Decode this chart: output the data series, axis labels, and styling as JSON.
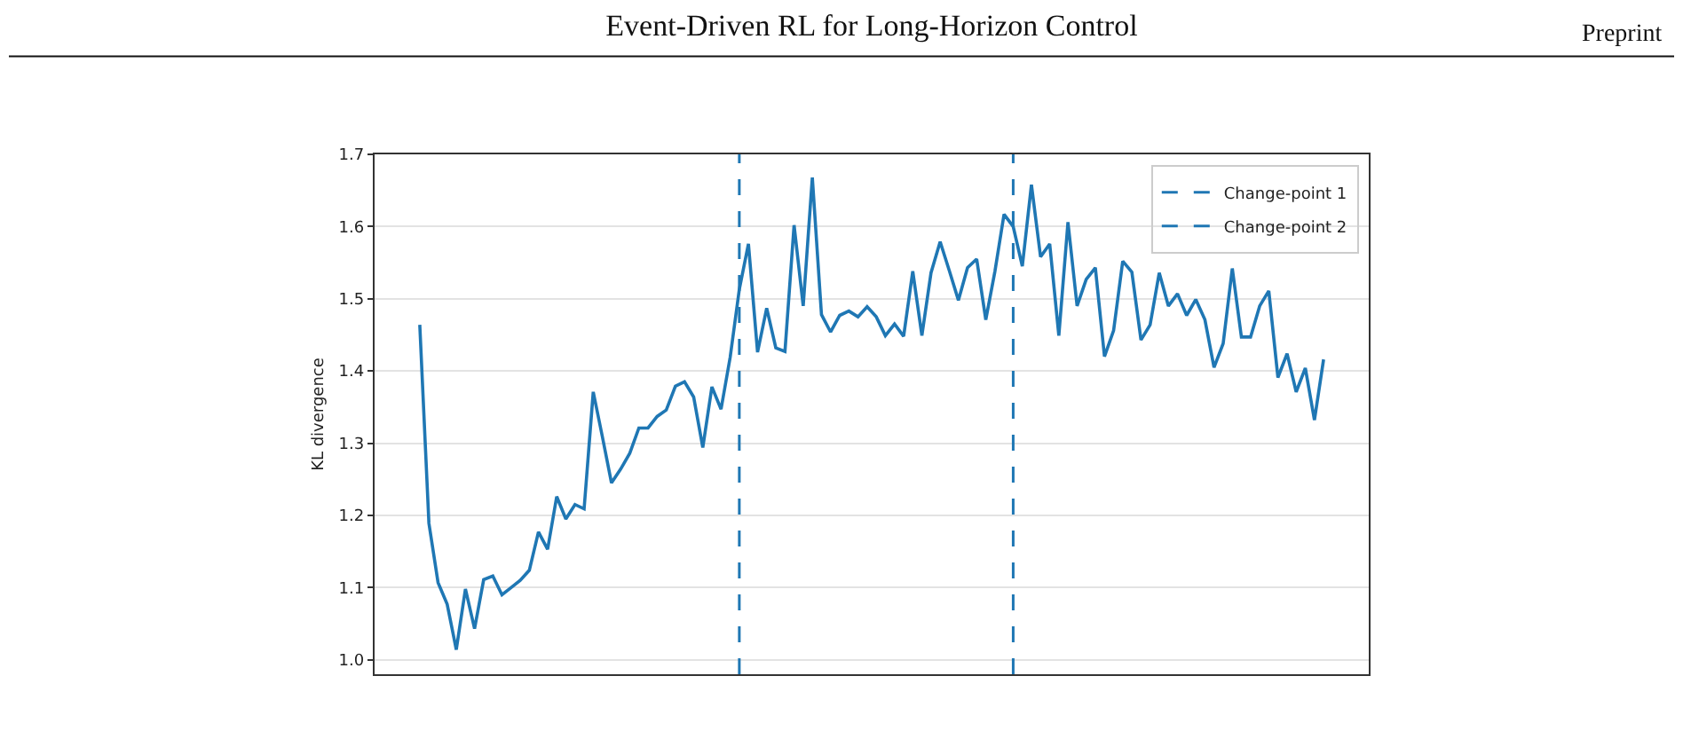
{
  "chart_data": {
    "type": "line",
    "title": "Event-Driven RL for Long-Horizon Control",
    "annotations": [
      "Preprint"
    ],
    "ylabel": "KL divergence",
    "categories": [
      null,
      null,
      null,
      null,
      null,
      null,
      null,
      null,
      null,
      null,
      null,
      null,
      null,
      null,
      null,
      null,
      null,
      null,
      null,
      null,
      null,
      null,
      null,
      null,
      null,
      null,
      null,
      null,
      null,
      null,
      null,
      null,
      null,
      null,
      null,
      null,
      null,
      null,
      null,
      null,
      null,
      null,
      null,
      null,
      null,
      null,
      null,
      null,
      null,
      null,
      null,
      null,
      null,
      null,
      null,
      null,
      null,
      null,
      null,
      null,
      null,
      null,
      null,
      null,
      null,
      null,
      null,
      null,
      null,
      null,
      null,
      null,
      null,
      null,
      null,
      null,
      null,
      null,
      null,
      null,
      null,
      null,
      null,
      null,
      null,
      null,
      null,
      null,
      null,
      null,
      null,
      null,
      null,
      null,
      null,
      null,
      null,
      null,
      null,
      null
    ],
    "series": [
      {
        "color": "#1f77b4",
        "values": [
          1.464,
          1.189,
          1.107,
          1.077,
          1.014,
          1.098,
          1.043,
          1.111,
          1.116,
          1.09,
          1.1,
          1.11,
          1.124,
          1.177,
          1.153,
          1.226,
          1.195,
          1.215,
          1.209,
          1.371,
          1.309,
          1.245,
          1.264,
          1.286,
          1.321,
          1.321,
          1.337,
          1.346,
          1.379,
          1.385,
          1.364,
          1.294,
          1.378,
          1.347,
          1.419,
          1.513,
          1.576,
          1.426,
          1.487,
          1.432,
          1.427,
          1.602,
          1.49,
          1.668,
          1.478,
          1.454,
          1.477,
          1.483,
          1.475,
          1.489,
          1.475,
          1.449,
          1.465,
          1.448,
          1.538,
          1.449,
          1.536,
          1.579,
          1.539,
          1.498,
          1.543,
          1.555,
          1.471,
          1.538,
          1.617,
          1.6,
          1.545,
          1.658,
          1.558,
          1.576,
          1.449,
          1.606,
          1.49,
          1.527,
          1.543,
          1.42,
          1.456,
          1.552,
          1.537,
          1.443,
          1.464,
          1.536,
          1.49,
          1.507,
          1.477,
          1.499,
          1.471,
          1.405,
          1.438,
          1.542,
          1.447,
          1.447,
          1.49,
          1.511,
          1.391,
          1.424,
          1.371,
          1.404,
          1.332,
          1.416
        ]
      }
    ],
    "ref_lines": [
      {
        "axis": "x",
        "label": "Change-point 1",
        "color": "#1f77b4",
        "line_style": "dashed"
      },
      {
        "axis": "x",
        "label": "Change-point 2",
        "color": "#1f77b4",
        "line_style": "dashed"
      }
    ],
    "ylim": [
      0.98,
      1.7
    ],
    "yticks": [
      {
        "value": 1.0,
        "label": "1.0"
      },
      1.1,
      1.2,
      1.3,
      1.4,
      1.5,
      1.6,
      1.7
    ],
    "grid": true,
    "marker": "none",
    "line_style": "solid"
  }
}
